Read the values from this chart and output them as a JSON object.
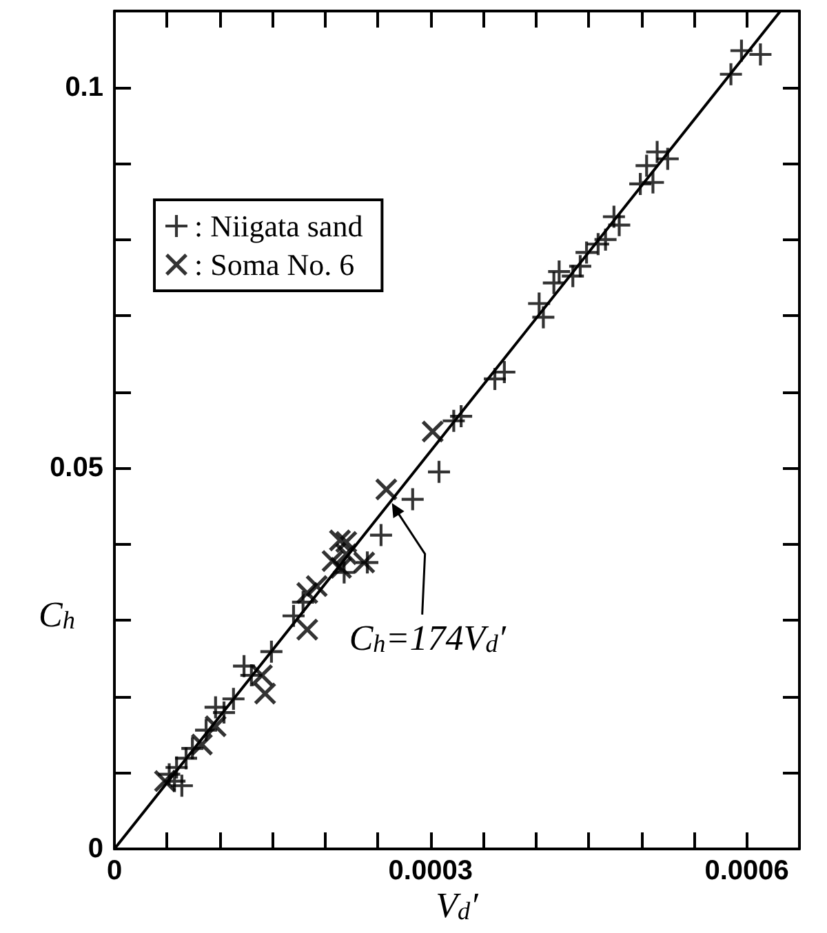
{
  "chart_data": {
    "type": "scatter",
    "xlabel": "V$_{d}$′",
    "ylabel": "C$_{h}$",
    "xlim": [
      0,
      0.00065
    ],
    "ylim": [
      0,
      0.11
    ],
    "xticks": [
      0,
      {
        "value": 5e-05,
        "label": null
      },
      {
        "value": 0.0001,
        "label": null
      },
      {
        "value": 0.00015,
        "label": null
      },
      {
        "value": 0.0002,
        "label": null
      },
      {
        "value": 0.00025,
        "label": null
      },
      0.0003,
      {
        "value": 0.00035,
        "label": null
      },
      {
        "value": 0.0004,
        "label": null
      },
      {
        "value": 0.00045,
        "label": null
      },
      {
        "value": 0.0005,
        "label": null
      },
      {
        "value": 0.00055,
        "label": null
      },
      0.0006
    ],
    "yticks": [
      0,
      {
        "value": 0.01,
        "label": null
      },
      {
        "value": 0.02,
        "label": null
      },
      {
        "value": 0.03,
        "label": null
      },
      {
        "value": 0.04,
        "label": null
      },
      0.05,
      {
        "value": 0.06,
        "label": null
      },
      {
        "value": 0.07,
        "label": null
      },
      {
        "value": 0.08,
        "label": null
      },
      {
        "value": 0.09,
        "label": null
      },
      0.1
    ],
    "legend": "top left",
    "grid": false,
    "annotations": [
      {
        "text": "C$_{h}$=174V$_{d}$′",
        "x": 0.000262,
        "y": 0.0456
      }
    ],
    "series": [
      {
        "name": ": Niigata sand",
        "color": "#000000",
        "marker": "cross",
        "x": [
          0.000585,
          0.000595,
          0.000613,
          0.000515,
          0.000525,
          0.000505,
          0.000499,
          0.000511,
          0.000474,
          0.000479,
          0.000466,
          0.000459,
          0.000448,
          0.000442,
          0.000435,
          0.000422,
          0.000417,
          0.000403,
          0.000407,
          0.00037,
          0.000361,
          0.000329,
          0.000322,
          0.000308,
          0.000283,
          0.000253,
          0.00024,
          0.000218,
          0.000179,
          0.00017,
          0.000149,
          0.00013,
          0.000123,
          0.000113,
          0.000104,
          9.6e-05,
          8.7e-05,
          7.4e-05,
          6.8e-05,
          5.9e-05,
          5.2e-05,
          5.7e-05,
          6.4e-05
        ],
        "values": [
          0.1017,
          0.1048,
          0.1043,
          0.0915,
          0.0906,
          0.0897,
          0.0873,
          0.0875,
          0.083,
          0.0819,
          0.08,
          0.0794,
          0.0783,
          0.0765,
          0.0752,
          0.0758,
          0.0743,
          0.0716,
          0.0698,
          0.0626,
          0.0617,
          0.0568,
          0.0562,
          0.0495,
          0.0459,
          0.0412,
          0.0376,
          0.0363,
          0.0324,
          0.0306,
          0.0259,
          0.0228,
          0.024,
          0.0197,
          0.0179,
          0.0186,
          0.0156,
          0.0132,
          0.0119,
          0.0107,
          0.0098,
          0.0089,
          0.0083
        ]
      },
      {
        "name": ": Soma No. 6",
        "color": "#000000",
        "marker": "x",
        "x": [
          0.000302,
          0.000258,
          0.00022,
          0.000214,
          0.00022,
          0.000207,
          0.000192,
          0.000183,
          0.000237,
          0.000215,
          0.000183,
          0.00014,
          0.000143,
          9.6e-05,
          8.3e-05,
          4.8e-05
        ],
        "values": [
          0.0548,
          0.0472,
          0.0403,
          0.0405,
          0.0387,
          0.0378,
          0.0345,
          0.0336,
          0.0376,
          0.0369,
          0.0288,
          0.0228,
          0.0204,
          0.0161,
          0.0137,
          0.0089
        ]
      },
      {
        "type": "line",
        "color": "#000000",
        "x": [
          0,
          0.000632
        ],
        "values": [
          0,
          0.11
        ]
      }
    ]
  }
}
